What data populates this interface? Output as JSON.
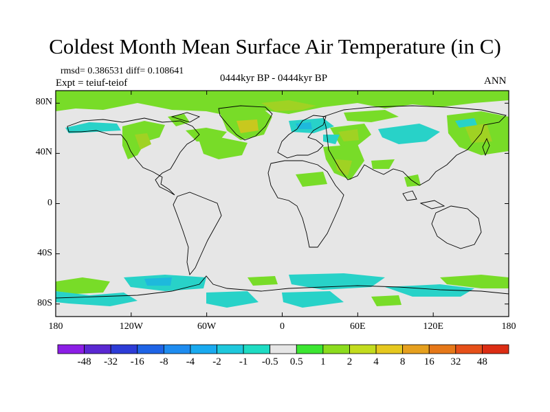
{
  "title": "Coldest Month Mean Surface Air Temperature (in C)",
  "stats": "rmsd= 0.386531  diff= 0.108641",
  "expt": "Expt = teiuf-teiof",
  "period": "0444kyr BP - 0444kyr BP",
  "season": "ANN",
  "lon_ticks": [
    "180",
    "120W",
    "60W",
    "0",
    "60E",
    "120E",
    "180"
  ],
  "lat_ticks": [
    "80N",
    "40N",
    "0",
    "40S",
    "80S"
  ],
  "colorbar": {
    "labels": [
      "-48",
      "-32",
      "-16",
      "-8",
      "-4",
      "-2",
      "-1",
      "-0.5",
      "0.5",
      "1",
      "2",
      "4",
      "8",
      "16",
      "32",
      "48"
    ],
    "colors": [
      "#8c1ee6",
      "#5a28d2",
      "#2d3cd7",
      "#1e64e6",
      "#1e8cf0",
      "#19aaf0",
      "#1ec8dc",
      "#1edcc3",
      "#e6e6e6",
      "#3ce632",
      "#8cdc1e",
      "#c3dc1e",
      "#e6c81e",
      "#e6a01e",
      "#e67819",
      "#e65019",
      "#dc2d14"
    ]
  },
  "colors": {
    "ocean_bg": "#e6e6e6",
    "warm_light": "#78dc28",
    "warm_mid": "#a0d223",
    "warm_high": "#c8c81e",
    "cool_light": "#28d2c8",
    "cool_mid": "#1eb9dc"
  }
}
